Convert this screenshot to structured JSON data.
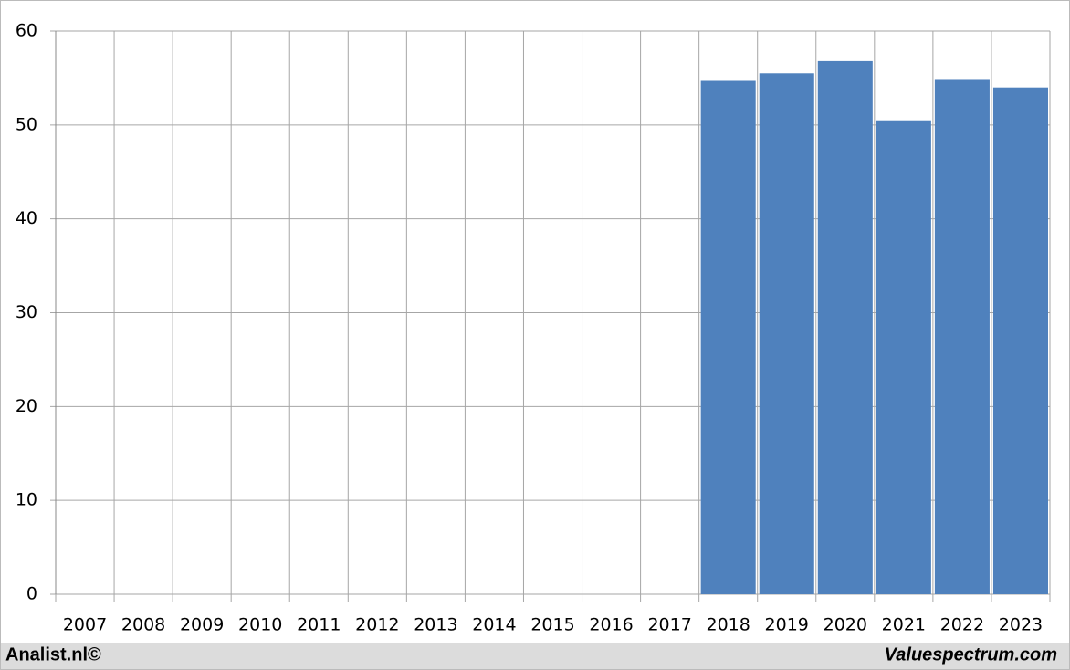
{
  "chart_data": {
    "type": "bar",
    "categories": [
      "2007",
      "2008",
      "2009",
      "2010",
      "2011",
      "2012",
      "2013",
      "2014",
      "2015",
      "2016",
      "2017",
      "2018",
      "2019",
      "2020",
      "2021",
      "2022",
      "2023"
    ],
    "values": [
      null,
      null,
      null,
      null,
      null,
      null,
      null,
      null,
      null,
      null,
      null,
      54.7,
      55.5,
      56.8,
      50.4,
      54.8,
      54.0
    ],
    "color": "#4f81bd",
    "ylim": [
      0,
      60
    ],
    "yticks": [
      0,
      10,
      20,
      30,
      40,
      50,
      60
    ],
    "grid": true
  },
  "footer": {
    "left": "Analist.nl©",
    "right": "Valuespectrum.com"
  }
}
